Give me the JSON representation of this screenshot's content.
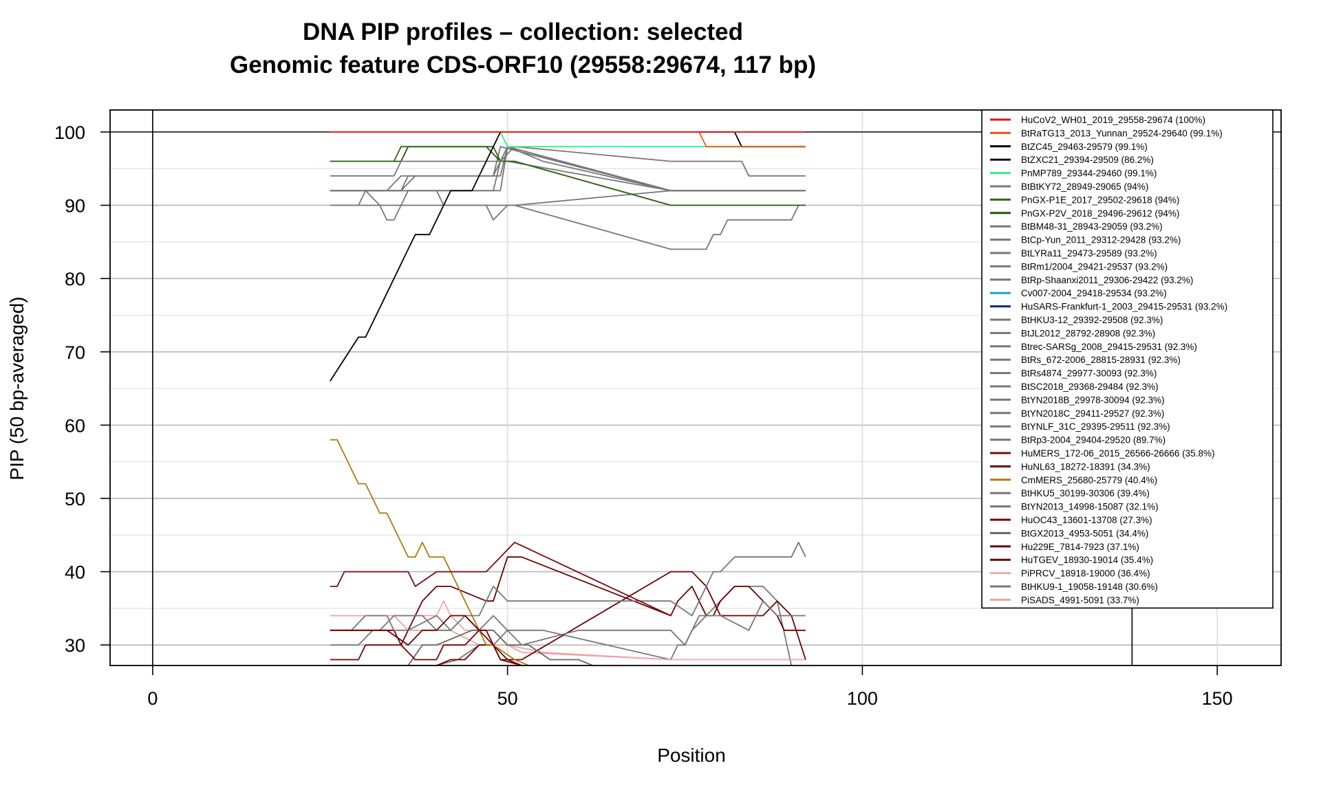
{
  "chart_data": {
    "type": "line",
    "title": "DNA PIP profiles – collection: selected",
    "subtitle": "Genomic feature CDS-ORF10 (29558:29674, 117 bp)",
    "xlabel": "Position",
    "ylabel": "PIP (50 bp-averaged)",
    "xlim": [
      -6,
      159
    ],
    "ylim": [
      27.2,
      103
    ],
    "x_ticks": [
      0,
      50,
      100,
      150
    ],
    "y_ticks": [
      30,
      40,
      50,
      60,
      70,
      80,
      90,
      100
    ],
    "grid": true,
    "legend_position": "top-right",
    "reference_lines": {
      "vertical": [
        0,
        138
      ],
      "horizontal": [
        100
      ]
    },
    "series": [
      {
        "name": "HuCoV2_WH01_2019_29558-29674 (100%)",
        "color": "#ee1111",
        "x": [
          25,
          92
        ],
        "y": [
          100,
          100
        ]
      },
      {
        "name": "BtRaTG13_2013_Yunnan_29524-29640 (99.1%)",
        "color": "#ee5511",
        "x": [
          25,
          77,
          78,
          92
        ],
        "y": [
          100,
          100,
          98,
          98
        ]
      },
      {
        "name": "BtZC45_29463-29579 (99.1%)",
        "color": "#000000",
        "x": [
          25,
          27,
          29,
          30,
          32,
          34,
          36,
          37,
          39,
          41,
          42,
          45,
          46,
          48,
          49,
          51,
          82,
          83,
          85,
          92
        ],
        "y": [
          66,
          69,
          72,
          72,
          76,
          80,
          84,
          86,
          86,
          90,
          92,
          92,
          94,
          98,
          100,
          100,
          100,
          98,
          98,
          98
        ]
      },
      {
        "name": "BtZXC21_29394-29509 (86.2%)",
        "color": "#111111",
        "x": [],
        "y": []
      },
      {
        "name": "PnMP789_29344-29460 (99.1%)",
        "color": "#33ee88",
        "x": [
          25,
          47,
          48,
          49,
          50,
          92
        ],
        "y": [
          100,
          100,
          100,
          100,
          98,
          98
        ]
      },
      {
        "name": "BtBtKY72_28949-29065 (94%)",
        "color": "#777777",
        "x": [
          25,
          34,
          35,
          40,
          45,
          49,
          51,
          73,
          83,
          84,
          92
        ],
        "y": [
          94,
          94,
          96,
          96,
          96,
          96,
          98,
          96,
          96,
          94,
          94
        ]
      },
      {
        "name": "PnGX-P1E_2017_29502-29618 (94%)",
        "color": "#336611",
        "x": [
          25,
          34,
          35,
          47,
          48,
          49,
          51,
          73,
          92
        ],
        "y": [
          96,
          96,
          98,
          98,
          98,
          96,
          96,
          90,
          90
        ]
      },
      {
        "name": "PnGX-P2V_2018_29496-29612 (94%)",
        "color": "#225511",
        "x": [
          25,
          35,
          36,
          47,
          49,
          51,
          73,
          92
        ],
        "y": [
          96,
          96,
          98,
          98,
          96,
          96,
          90,
          90
        ]
      },
      {
        "name": "BtBM48-31_28943-29059 (93.2%)",
        "color": "#777777",
        "x": [
          25,
          30,
          32,
          33,
          35,
          39,
          40,
          42,
          48,
          50,
          55,
          73,
          80,
          92
        ],
        "y": [
          92,
          92,
          92,
          92,
          94,
          94,
          94,
          94,
          94,
          98,
          96,
          92,
          92,
          92
        ]
      },
      {
        "name": "BtCp-Yun_2011_29312-29428 (93.2%)",
        "color": "#777777",
        "x": [
          25,
          29,
          30,
          32,
          33,
          34,
          35,
          36,
          40,
          41,
          50,
          51,
          73,
          88,
          89,
          92
        ],
        "y": [
          90,
          90,
          92,
          90,
          88,
          88,
          90,
          92,
          92,
          90,
          90,
          90,
          92,
          92,
          92,
          92
        ]
      },
      {
        "name": "BtLYRa11_29473-29589 (93.2%)",
        "color": "#777777",
        "x": [
          25,
          35,
          37,
          40,
          41,
          49,
          50,
          73,
          92
        ],
        "y": [
          92,
          92,
          94,
          94,
          94,
          94,
          98,
          92,
          92
        ]
      },
      {
        "name": "BtRm1/2004_29421-29537 (93.2%)",
        "color": "#777777",
        "x": [
          25,
          35,
          36,
          48,
          49,
          73,
          92
        ],
        "y": [
          92,
          92,
          94,
          94,
          98,
          92,
          92
        ]
      },
      {
        "name": "BtRp-Shaanxi2011_29306-29422 (93.2%)",
        "color": "#777777",
        "x": [
          25,
          49,
          50,
          73,
          92
        ],
        "y": [
          92,
          92,
          98,
          92,
          92
        ]
      },
      {
        "name": "Cv007-2004_29418-29534 (93.2%)",
        "color": "#1a9fe0",
        "x": [],
        "y": []
      },
      {
        "name": "HuSARS-Frankfurt-1_2003_29415-29531 (93.2%)",
        "color": "#112288",
        "x": [],
        "y": []
      },
      {
        "name": "BtHKU3-12_29392-29508 (92.3%)",
        "color": "#777777",
        "x": [
          25,
          35,
          36,
          47,
          48,
          49,
          50,
          73,
          92
        ],
        "y": [
          92,
          92,
          92,
          92,
          92,
          96,
          96,
          92,
          92
        ]
      },
      {
        "name": "BtJL2012_28792-28908 (92.3%)",
        "color": "#777777",
        "x": [],
        "y": []
      },
      {
        "name": "Btrec-SARSg_2008_29415-29531 (92.3%)",
        "color": "#777777",
        "x": [],
        "y": []
      },
      {
        "name": "BtRs_672-2006_28815-28931 (92.3%)",
        "color": "#777777",
        "x": [],
        "y": []
      },
      {
        "name": "BtRs4874_29977-30093 (92.3%)",
        "color": "#777777",
        "x": [],
        "y": []
      },
      {
        "name": "BtSC2018_29368-29484 (92.3%)",
        "color": "#777777",
        "x": [],
        "y": []
      },
      {
        "name": "BtYN2018B_29978-30094 (92.3%)",
        "color": "#777777",
        "x": [],
        "y": []
      },
      {
        "name": "BtYN2018C_29411-29527 (92.3%)",
        "color": "#777777",
        "x": [],
        "y": []
      },
      {
        "name": "BtYNLF_31C_29395-29511 (92.3%)",
        "color": "#777777",
        "x": [],
        "y": []
      },
      {
        "name": "BtRp3-2004_29404-29520 (89.7%)",
        "color": "#777777",
        "x": [
          25,
          47,
          48,
          50,
          51,
          73,
          78,
          79,
          80,
          81,
          82,
          90,
          91,
          92
        ],
        "y": [
          90,
          90,
          88,
          90,
          90,
          84,
          84,
          86,
          86,
          88,
          88,
          88,
          90,
          90
        ]
      },
      {
        "name": "HuMERS_172-06_2015_26566-26666 (35.8%)",
        "color": "#7a0a0a",
        "x": [
          25,
          26,
          27,
          34,
          36,
          37,
          40,
          46,
          47,
          51,
          73
        ],
        "y": [
          38,
          38,
          40,
          40,
          40,
          38,
          40,
          40,
          40,
          44,
          34
        ]
      },
      {
        "name": "HuNL63_18272-18391 (34.3%)",
        "color": "#6e0000",
        "x": [
          25,
          30,
          31,
          33,
          36,
          38,
          40,
          42,
          44,
          46,
          47,
          48,
          49,
          50,
          52,
          60
        ],
        "y": [
          32,
          32,
          32,
          32,
          30,
          32,
          32,
          34,
          34,
          32,
          32,
          30,
          28,
          28,
          27.2,
          27.2
        ]
      },
      {
        "name": "CmMERS_25680-25779 (40.4%)",
        "color": "#b07a10",
        "x": [
          25,
          26,
          27,
          29,
          30,
          32,
          33,
          35,
          36,
          37,
          38,
          39,
          40,
          41,
          44,
          47,
          48,
          51,
          53
        ],
        "y": [
          58,
          58,
          56,
          52,
          52,
          48,
          48,
          44,
          42,
          42,
          44,
          42,
          42,
          42,
          36,
          30,
          30,
          28,
          27.2
        ]
      },
      {
        "name": "BtHKU5_30199-30306 (39.4%)",
        "color": "#777777",
        "x": [
          25,
          28,
          30,
          33,
          34,
          36,
          40,
          42,
          44,
          46,
          48,
          50,
          55,
          73,
          76,
          77,
          79,
          80,
          82,
          90,
          91,
          92
        ],
        "y": [
          32,
          32,
          34,
          34,
          32,
          32,
          34,
          32,
          34,
          34,
          38,
          36,
          36,
          36,
          34,
          36,
          40,
          40,
          42,
          42,
          44,
          42
        ]
      },
      {
        "name": "BtYN2013_14998-15087 (32.1%)",
        "color": "#777777",
        "x": [
          25,
          29,
          31,
          32,
          34,
          38,
          40,
          42,
          44,
          46,
          48,
          52,
          60,
          73,
          75,
          76,
          78,
          80,
          84,
          86,
          88,
          92
        ],
        "y": [
          30,
          30,
          32,
          32,
          34,
          34,
          32,
          32,
          34,
          32,
          34,
          30,
          32,
          32,
          30,
          32,
          34,
          34,
          32,
          36,
          34,
          34
        ]
      },
      {
        "name": "HuOC43_13601-13708 (27.3%)",
        "color": "#7a0000",
        "x": [
          25,
          26,
          29,
          30,
          35,
          37,
          40,
          41,
          44,
          46,
          48,
          49,
          52,
          60
        ],
        "y": [
          28,
          28,
          28,
          30,
          30,
          28,
          28,
          30,
          30,
          32,
          30,
          28,
          27.2,
          27.2
        ]
      },
      {
        "name": "BtGX2013_4953-5051 (34.4%)",
        "color": "#666666",
        "x": [
          25,
          36,
          38,
          40,
          45,
          48,
          50,
          53,
          56,
          60,
          62
        ],
        "y": [
          27.2,
          27.2,
          30,
          30,
          32,
          32,
          30,
          30,
          28,
          28,
          27.2
        ]
      },
      {
        "name": "Hu229E_7814-7923 (37.1%)",
        "color": "#6a0000",
        "x": [
          25,
          29,
          34,
          35,
          36,
          37,
          38,
          40,
          42,
          47,
          48,
          50,
          52,
          73,
          74,
          76,
          78,
          79,
          80,
          82,
          84,
          88,
          89,
          92
        ],
        "y": [
          32,
          32,
          32,
          30,
          32,
          34,
          36,
          38,
          38,
          36,
          36,
          42,
          42,
          34,
          36,
          38,
          34,
          34,
          36,
          38,
          38,
          34,
          32,
          32
        ]
      },
      {
        "name": "HuTGEV_18930-19014 (35.4%)",
        "color": "#6a0000",
        "x": [
          25,
          40,
          42,
          44,
          46,
          48,
          50,
          52,
          73,
          75,
          76,
          78,
          80,
          83,
          86,
          88,
          90,
          92
        ],
        "y": [
          27.2,
          27.2,
          28,
          28,
          30,
          30,
          28,
          28,
          40,
          40,
          40,
          38,
          34,
          34,
          34,
          36,
          34,
          28
        ]
      },
      {
        "name": "PiPRCV_18918-19000 (36.4%)",
        "color": "#f0a8a8",
        "x": [
          25,
          30,
          35,
          38,
          40,
          41,
          42,
          44,
          46,
          48,
          50,
          55,
          73,
          92
        ],
        "y": [
          34,
          34,
          34,
          34,
          34,
          36,
          34,
          32,
          32,
          32,
          30,
          29,
          28,
          28
        ]
      },
      {
        "name": "BtHKU9-1_19058-19148 (30.6%)",
        "color": "#777777",
        "x": [
          25,
          40,
          43,
          46,
          48,
          50,
          55,
          73,
          74,
          75,
          77,
          78,
          80,
          82,
          86,
          88,
          90
        ],
        "y": [
          27.2,
          27.2,
          28,
          30,
          30,
          32,
          32,
          28,
          30,
          30,
          34,
          34,
          36,
          38,
          38,
          36,
          27.2
        ]
      },
      {
        "name": "PiSADS_4991-5091 (33.7%)",
        "color": "#f0a0a0",
        "x": [
          25,
          34,
          36,
          38,
          42,
          46,
          48,
          50,
          52,
          73
        ],
        "y": [
          34,
          34,
          32,
          32,
          32,
          30,
          30,
          30,
          29,
          28
        ]
      }
    ]
  }
}
